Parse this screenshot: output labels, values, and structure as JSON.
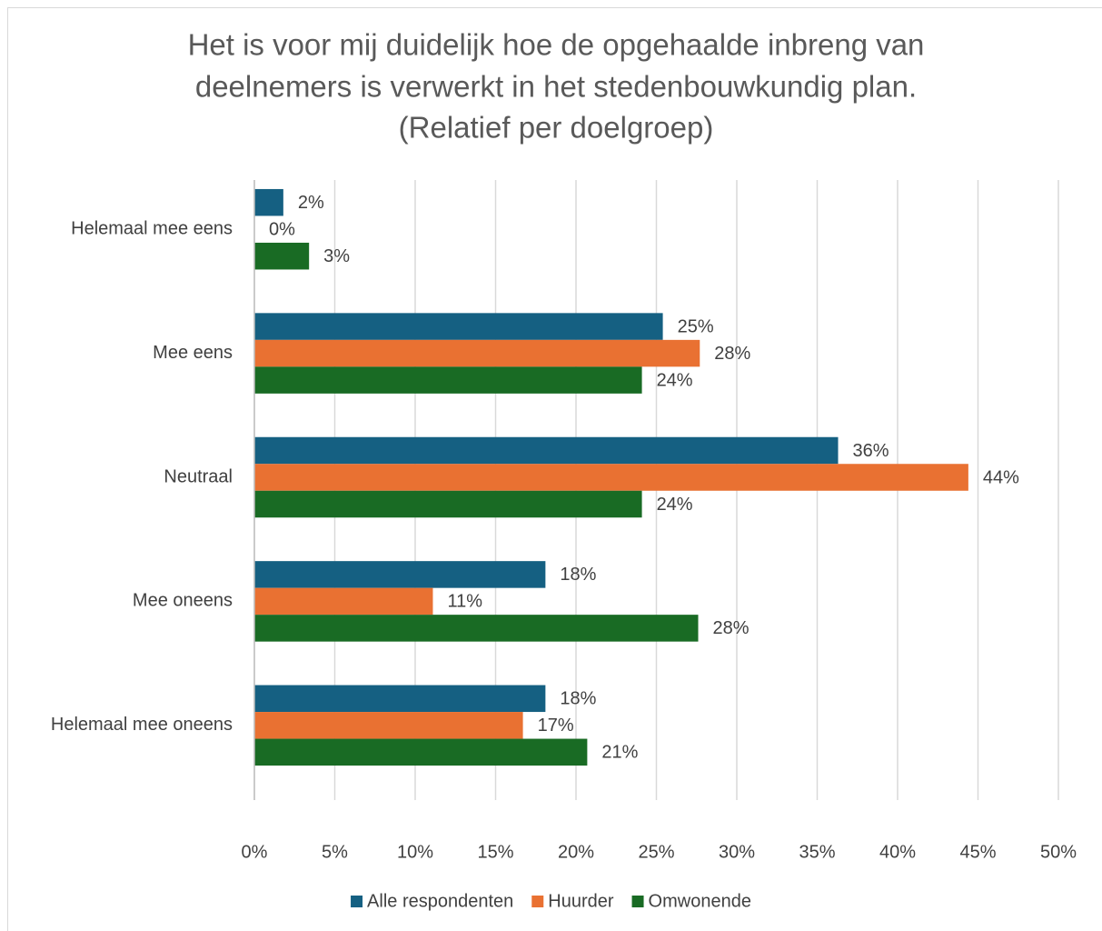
{
  "chart_data": {
    "type": "hbar",
    "title": [
      "Het is voor mij duidelijk hoe de opgehaalde inbreng van",
      "deelnemers is verwerkt in het stedenbouwkundig plan.",
      "(Relatief per doelgroep)"
    ],
    "categories": [
      "Helemaal mee eens",
      "Mee eens",
      "Neutraal",
      "Mee oneens",
      "Helemaal mee oneens"
    ],
    "series": [
      {
        "name": "Alle respondenten",
        "color": "#156082",
        "values": [
          1.8,
          25.4,
          36.3,
          18.1,
          18.1
        ],
        "value_labels": [
          "2%",
          "25%",
          "36%",
          "18%",
          "18%"
        ]
      },
      {
        "name": "Huurder",
        "color": "#e97132",
        "values": [
          0,
          27.7,
          44.4,
          11.1,
          16.7
        ],
        "value_labels": [
          "0%",
          "28%",
          "44%",
          "11%",
          "17%"
        ]
      },
      {
        "name": "Omwonende",
        "color": "#196b24",
        "values": [
          3.4,
          24.1,
          24.1,
          27.6,
          20.7
        ],
        "value_labels": [
          "3%",
          "24%",
          "24%",
          "28%",
          "21%"
        ]
      }
    ],
    "xlim": [
      0,
      50
    ],
    "xticks": [
      {
        "value": 0,
        "label": "0%"
      },
      {
        "value": 5,
        "label": "5%"
      },
      {
        "value": 10,
        "label": "10%"
      },
      {
        "value": 15,
        "label": "15%"
      },
      {
        "value": 20,
        "label": "20%"
      },
      {
        "value": 25,
        "label": "25%"
      },
      {
        "value": 30,
        "label": "30%"
      },
      {
        "value": 35,
        "label": "35%"
      },
      {
        "value": 40,
        "label": "40%"
      },
      {
        "value": 45,
        "label": "45%"
      },
      {
        "value": 50,
        "label": "50%"
      }
    ],
    "grid": true,
    "legend": "bottom"
  }
}
